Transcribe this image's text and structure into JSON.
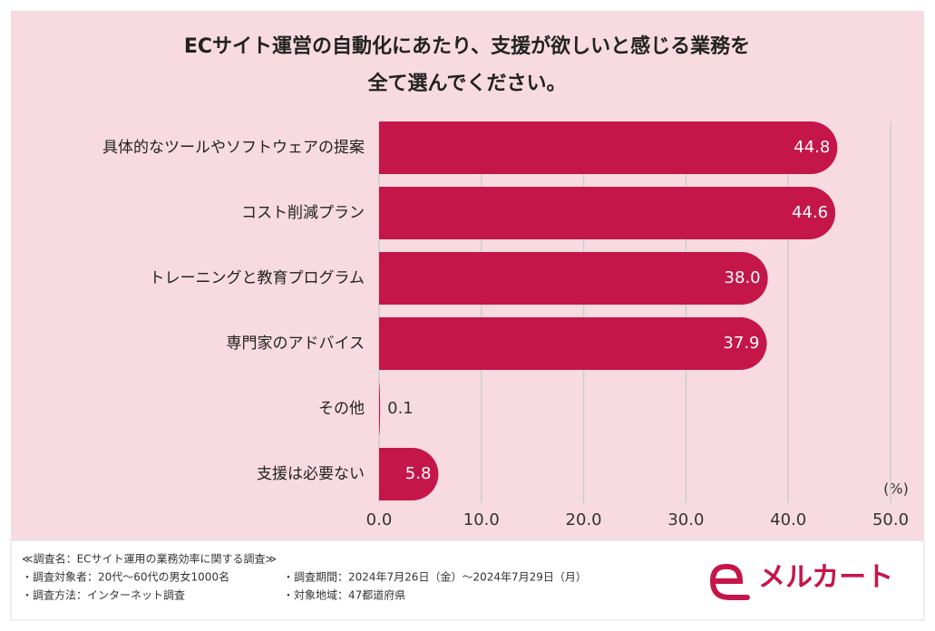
{
  "chart_data": {
    "type": "hbar",
    "title": [
      "ECサイト運営の自動化にあたり、支援が欲しいと感じる業務を",
      "全て選んでください。"
    ],
    "categories": [
      "具体的なツールやソフトウェアの提案",
      "コスト削減プラン",
      "トレーニングと教育プログラム",
      "専門家のアドバイス",
      "その他",
      "支援は必要ない"
    ],
    "values": [
      44.8,
      44.6,
      38,
      37.9,
      0.1,
      5.8
    ],
    "value_labels": [
      "44.8",
      "44.6",
      "38.0",
      "37.9",
      "0.1",
      "5.8"
    ],
    "color": "#c41649",
    "xlim": [
      0,
      50
    ],
    "xticks": [
      {
        "value": 0,
        "label": "0.0"
      },
      {
        "value": 10,
        "label": "10.0"
      },
      {
        "value": 20,
        "label": "20.0"
      },
      {
        "value": 30,
        "label": "30.0"
      },
      {
        "value": 40,
        "label": "40.0"
      },
      {
        "value": 50,
        "label": "50.0"
      }
    ],
    "unit": "(%)",
    "grid": true
  },
  "footer": {
    "lines": [
      "≪調査名：ECサイト運用の業務効率に関する調査≫",
      "・調査対象者：20代〜60代の男女1000名",
      "・調査期間：2024年7月26日（金）〜2024年7月29日（月）",
      "・調査方法：インターネット調査",
      "・対象地域：47都道府県"
    ],
    "logo": "メルカート"
  }
}
